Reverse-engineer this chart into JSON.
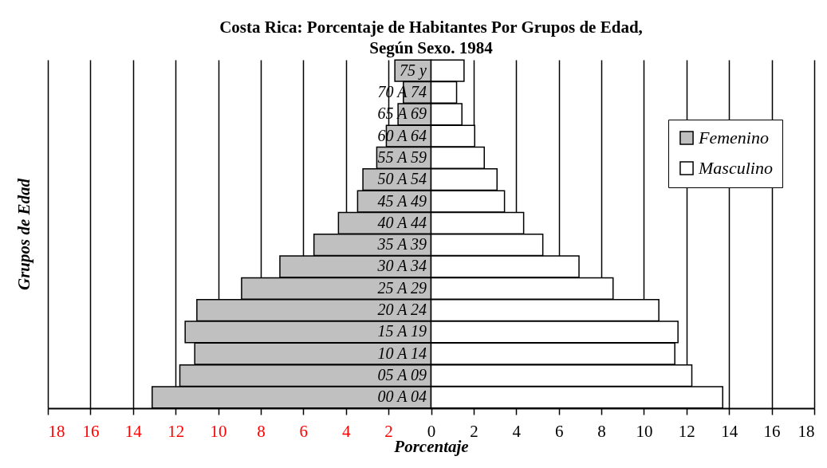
{
  "chart_data": {
    "type": "bar",
    "orientation": "horizontal",
    "title": "Costa Rica:  Porcentaje de Habitantes Por Grupos de Edad,\nSegún Sexo.  1984",
    "xlabel": "Porcentaje",
    "ylabel": "Grupos de Edad",
    "categories": [
      "75 y",
      "70 A 74",
      "65 A 69",
      "60 A 64",
      "55 A 59",
      "50 A 54",
      "45 A 49",
      "40 A 44",
      "35 A 39",
      "30 A 34",
      "25 A 29",
      "20 A 24",
      "15 A 19",
      "10 A 14",
      "05 A 09",
      "00 A 04"
    ],
    "series": [
      {
        "name": "Femenino",
        "color": "#c0c0c0",
        "values": [
          -1.7,
          -1.3,
          -1.55,
          -2.1,
          -2.55,
          -3.2,
          -3.45,
          -4.35,
          -5.5,
          -7.1,
          -8.9,
          -11.0,
          -11.55,
          -11.1,
          -11.8,
          -13.1
        ]
      },
      {
        "name": "Masculino",
        "color": "#ffffff",
        "values": [
          1.55,
          1.2,
          1.45,
          2.05,
          2.5,
          3.1,
          3.45,
          4.35,
          5.25,
          6.95,
          8.55,
          10.7,
          11.6,
          11.45,
          12.25,
          13.7
        ]
      }
    ],
    "xlim": [
      -18,
      18
    ],
    "xticks": [
      {
        "value": -18,
        "label": "18"
      },
      {
        "value": -16,
        "label": "16"
      },
      {
        "value": -14,
        "label": "14"
      },
      {
        "value": -12,
        "label": "12"
      },
      {
        "value": -10,
        "label": "10"
      },
      {
        "value": -8,
        "label": "8"
      },
      {
        "value": -6,
        "label": "6"
      },
      {
        "value": -4,
        "label": "4"
      },
      {
        "value": -2,
        "label": "2"
      },
      0,
      2,
      4,
      6,
      8,
      10,
      12,
      14,
      16,
      18
    ],
    "grid": "x",
    "legend": "top right",
    "stacked": true
  }
}
